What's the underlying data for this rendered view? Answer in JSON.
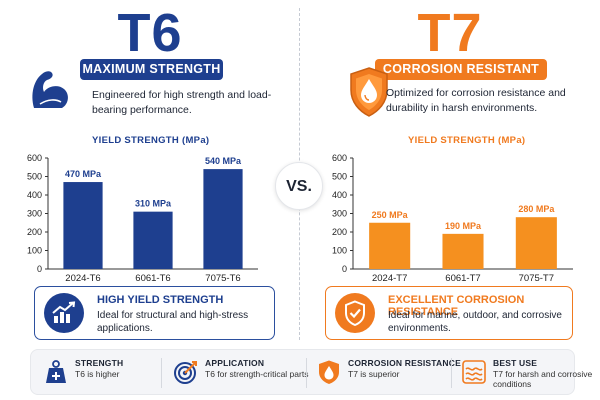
{
  "colors": {
    "t6": "#1e3f8f",
    "t6_bar": "#1e3f8f",
    "t7": "#f07a1f",
    "t7_bar": "#f5901f"
  },
  "vs_label": "VS.",
  "left": {
    "title": "T6",
    "badge": "MAXIMUM STRENGTH",
    "tagline": "Engineered for high strength and load-bearing performance.",
    "icon": "flexed-arm-icon",
    "card": {
      "icon": "rising-chart-icon",
      "title": "HIGH YIELD STRENGTH",
      "description": "Ideal for structural and high-stress applications."
    }
  },
  "right": {
    "title": "T7",
    "badge": "CORROSION RESISTANT",
    "tagline": "Optimized for corrosion resistance and durability in harsh environments.",
    "icon": "shield-droplet-icon",
    "card": {
      "icon": "shield-check-icon",
      "title": "EXCELLENT CORROSION RESISTANCE",
      "description": "Ideal for marine, outdoor, and corrosive environments."
    }
  },
  "chart_data": [
    {
      "type": "bar",
      "title": "YIELD STRENGTH (MPa)",
      "categories": [
        "2024-T6",
        "6061-T6",
        "7075-T6"
      ],
      "values": [
        470,
        310,
        540
      ],
      "value_labels": [
        "470 MPa",
        "310 MPa",
        "540 MPa"
      ],
      "ylim": [
        0,
        600
      ],
      "yticks": [
        0,
        100,
        200,
        300,
        400,
        500,
        600
      ],
      "grid": false,
      "color": "#1e3f8f"
    },
    {
      "type": "bar",
      "title": "YIELD STRENGTH (MPa)",
      "categories": [
        "2024-T7",
        "6061-T7",
        "7075-T7"
      ],
      "values": [
        250,
        190,
        280
      ],
      "value_labels": [
        "250 MPa",
        "190 MPa",
        "280 MPa"
      ],
      "ylim": [
        0,
        600
      ],
      "yticks": [
        0,
        100,
        200,
        300,
        400,
        500,
        600
      ],
      "grid": false,
      "color": "#f5901f"
    }
  ],
  "footer": [
    {
      "icon": "weight-icon",
      "title": "STRENGTH",
      "description": "T6 is higher"
    },
    {
      "icon": "target-icon",
      "title": "APPLICATION",
      "description": "T6 for strength-critical parts"
    },
    {
      "icon": "shield-droplet-icon",
      "title": "CORROSION RESISTANCE",
      "description": "T7 is superior"
    },
    {
      "icon": "wave-icon",
      "title": "BEST USE",
      "description": "T7 for harsh and corrosive conditions"
    }
  ]
}
